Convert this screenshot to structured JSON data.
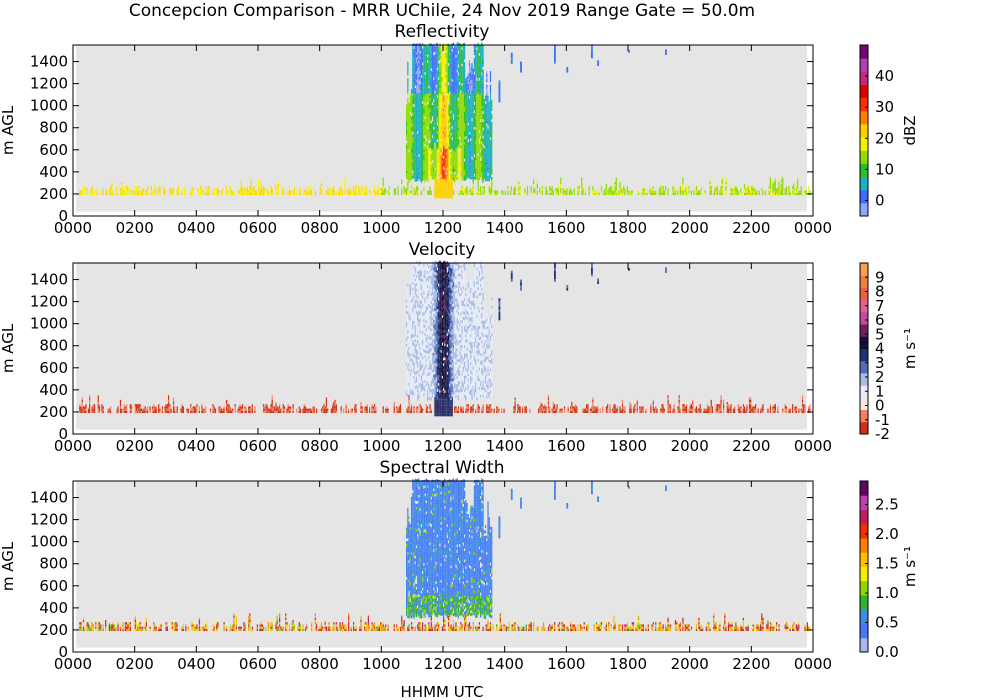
{
  "figure": {
    "suptitle": "Concepcion Comparison - MRR UChile, 24 Nov 2019 Range Gate = 50.0m",
    "xlabel": "HHMM UTC"
  },
  "chart_data": [
    {
      "type": "heatmap",
      "title": "Reflectivity",
      "ylabel": "m AGL",
      "xlim": [
        0,
        2400
      ],
      "ylim": [
        0,
        1550
      ],
      "x_ticks": [
        "0000",
        "0200",
        "0400",
        "0600",
        "0800",
        "1000",
        "1200",
        "1400",
        "1600",
        "1800",
        "2000",
        "2200",
        "0000"
      ],
      "y_ticks": [
        "0",
        "200",
        "400",
        "600",
        "800",
        "1000",
        "1200",
        "1400"
      ],
      "colorbar": {
        "label": "dBZ",
        "range": [
          -5,
          50
        ],
        "ticks": [
          "0",
          "10",
          "20",
          "30",
          "40"
        ],
        "tick_values": [
          0,
          10,
          20,
          30,
          40
        ],
        "colors": [
          "#8fa6ff",
          "#3c6dff",
          "#19b0c0",
          "#28c028",
          "#8fdc00",
          "#f4f400",
          "#ffd000",
          "#ff8000",
          "#ff3000",
          "#e00000",
          "#c8287a",
          "#b43cb4",
          "#6e0a6e"
        ]
      },
      "features": {
        "ground_layer": {
          "height_range": [
            180,
            320
          ],
          "time_range": [
            20,
            2390
          ],
          "dominant": "yellow-green (~15-20 dBZ)"
        },
        "precipitation": {
          "time_range": [
            1080,
            1360
          ],
          "height_range": [
            200,
            1550
          ],
          "core_time": 1200,
          "core_value_dbz": 20
        },
        "sparse_echoes_after": [
          1400,
          1700
        ]
      }
    },
    {
      "type": "heatmap",
      "title": "Velocity",
      "ylabel": "m AGL",
      "xlim": [
        0,
        2400
      ],
      "ylim": [
        0,
        1550
      ],
      "x_ticks": [
        "0000",
        "0200",
        "0400",
        "0600",
        "0800",
        "1000",
        "1200",
        "1400",
        "1600",
        "1800",
        "2000",
        "2200",
        "0000"
      ],
      "y_ticks": [
        "0",
        "200",
        "400",
        "600",
        "800",
        "1000",
        "1200",
        "1400"
      ],
      "colorbar": {
        "label": "m s⁻¹",
        "range": [
          -2,
          10
        ],
        "ticks": [
          "-2",
          "-1",
          "0",
          "1",
          "2",
          "3",
          "4",
          "5",
          "6",
          "7",
          "8",
          "9"
        ],
        "tick_values": [
          -2,
          -1,
          0,
          1,
          2,
          3,
          4,
          5,
          6,
          7,
          8,
          9
        ],
        "colors": [
          "#d03010",
          "#f08060",
          "#fbe6e0",
          "#e6ecf8",
          "#a8bce6",
          "#5070c0",
          "#24306e",
          "#101038",
          "#702060",
          "#c04ca0",
          "#e06090",
          "#f06040",
          "#f08040",
          "#f4a050"
        ]
      },
      "features": {
        "ground_layer": {
          "height_range": [
            180,
            320
          ],
          "dominant": "red/orange (~ -1.5 m/s)"
        },
        "precipitation": {
          "time_range": [
            1080,
            1360
          ],
          "dominant": "pale blue (~1-2 m/s)",
          "core_time": 1200,
          "core_value": 4
        }
      }
    },
    {
      "type": "heatmap",
      "title": "Spectral Width",
      "ylabel": "m AGL",
      "xlim": [
        0,
        2400
      ],
      "ylim": [
        0,
        1550
      ],
      "x_ticks": [
        "0000",
        "0200",
        "0400",
        "0600",
        "0800",
        "1000",
        "1200",
        "1400",
        "1600",
        "1800",
        "2000",
        "2200",
        "0000"
      ],
      "y_ticks": [
        "0",
        "200",
        "400",
        "600",
        "800",
        "1000",
        "1200",
        "1400"
      ],
      "colorbar": {
        "label": "m s⁻¹",
        "range": [
          0,
          2.9
        ],
        "ticks": [
          "0.0",
          "0.5",
          "1.0",
          "1.5",
          "2.0",
          "2.5"
        ],
        "tick_values": [
          0,
          0.5,
          1.0,
          1.5,
          2.0,
          2.5
        ],
        "colors": [
          "#a8b8f0",
          "#4a78ff",
          "#3a90e0",
          "#30b030",
          "#90d800",
          "#f0f000",
          "#ffc000",
          "#ff8000",
          "#f03000",
          "#c02060",
          "#c040b0",
          "#600860"
        ]
      },
      "features": {
        "ground_layer": {
          "height_range": [
            180,
            320
          ],
          "dominant": "mixed yellow/orange/red (~1.5-2.2 m/s)"
        },
        "precipitation": {
          "time_range": [
            1080,
            1360
          ],
          "dominant": "blue (~0.3-0.6 m/s)"
        }
      }
    }
  ]
}
